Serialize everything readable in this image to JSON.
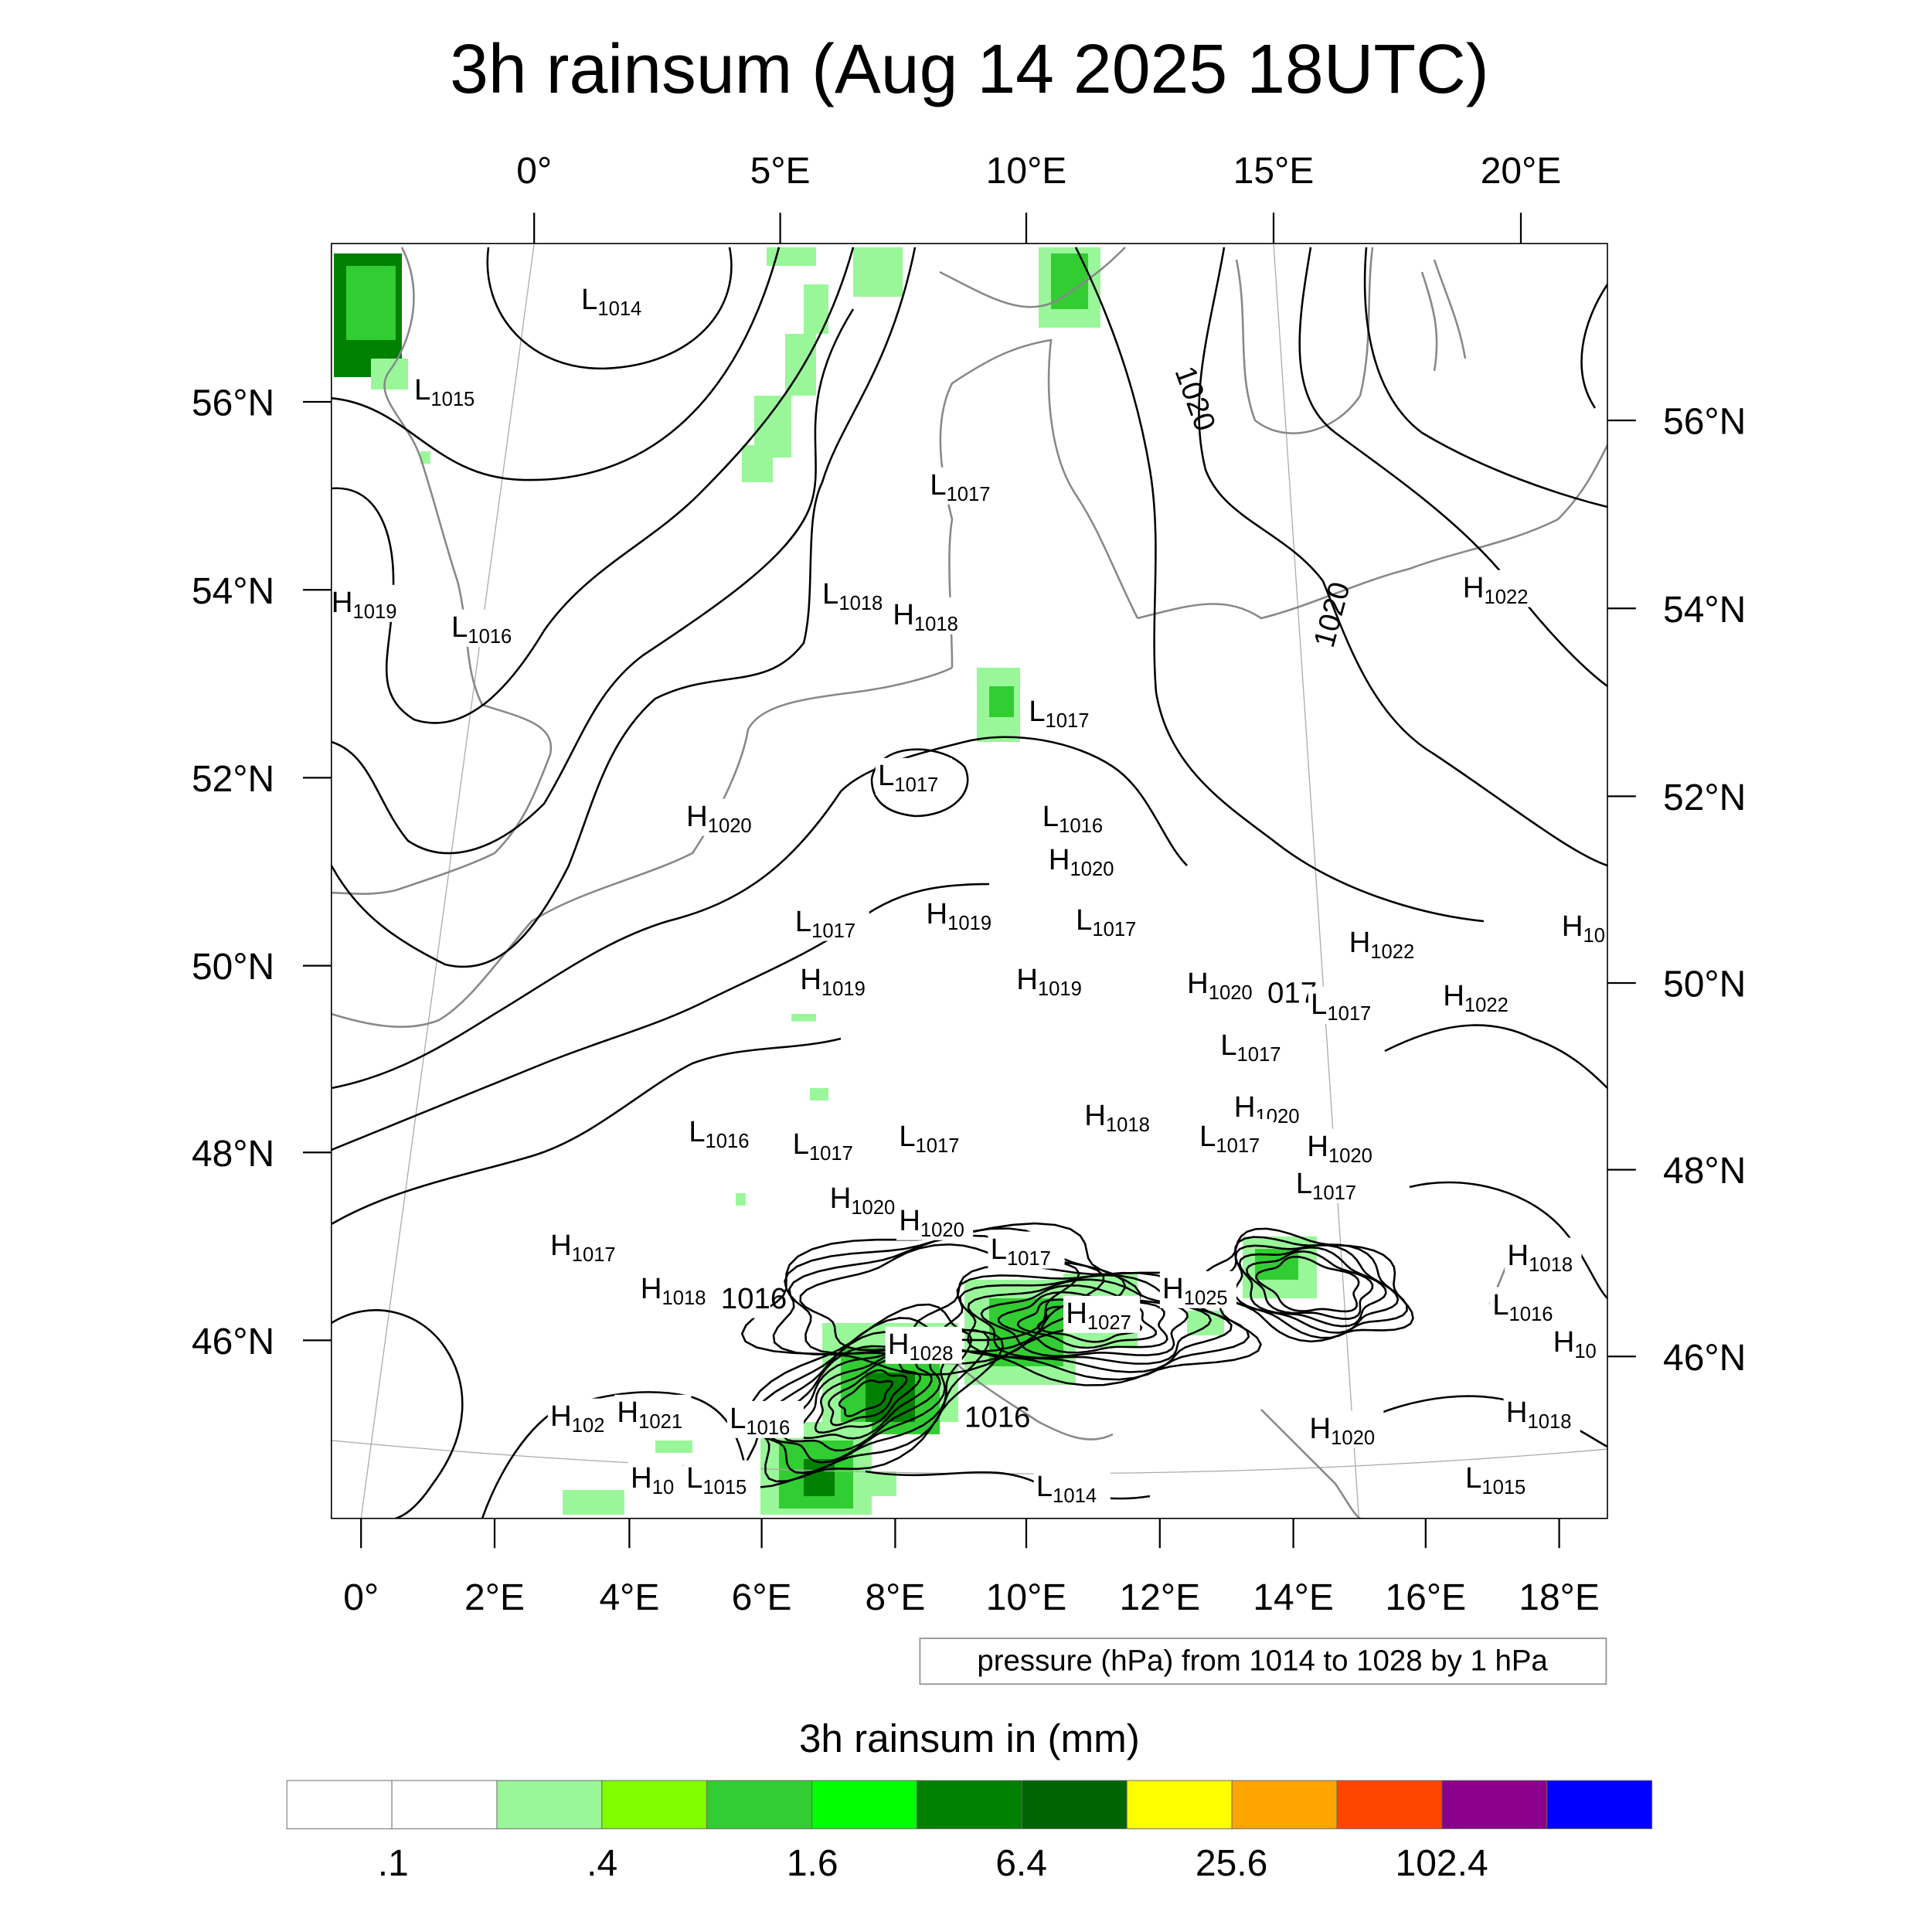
{
  "title": "3h rainsum (Aug 14 2025 18UTC)",
  "top_lon_labels": [
    "0°",
    "5°E",
    "10°E",
    "15°E",
    "20°E"
  ],
  "bottom_lon_labels": [
    "0°",
    "2°E",
    "4°E",
    "6°E",
    "8°E",
    "10°E",
    "12°E",
    "14°E",
    "16°E",
    "18°E"
  ],
  "left_lat_labels": [
    "56°N",
    "54°N",
    "52°N",
    "50°N",
    "48°N",
    "46°N"
  ],
  "right_lat_labels": [
    "56°N",
    "54°N",
    "52°N",
    "50°N",
    "48°N",
    "46°N"
  ],
  "contour_legend": "pressure (hPa) from 1014 to 1028 by 1 hPa",
  "contour_inline_labels": [
    "1020",
    "1020",
    "1016"
  ],
  "pressure_centers": [
    {
      "letter": "L",
      "value": "1014"
    },
    {
      "letter": "L",
      "value": "1015"
    },
    {
      "letter": "H",
      "value": "1019"
    },
    {
      "letter": "L",
      "value": "1016"
    },
    {
      "letter": "L",
      "value": "1017"
    },
    {
      "letter": "L",
      "value": "1018"
    },
    {
      "letter": "H",
      "value": "1018"
    },
    {
      "letter": "L",
      "value": "1017"
    },
    {
      "letter": "L",
      "value": "1017"
    },
    {
      "letter": "H",
      "value": "1020"
    },
    {
      "letter": "L",
      "value": "1016"
    },
    {
      "letter": "H",
      "value": "1020"
    },
    {
      "letter": "L",
      "value": "1017"
    },
    {
      "letter": "H",
      "value": "1019"
    },
    {
      "letter": "L",
      "value": "1017"
    },
    {
      "letter": "H",
      "value": "1019"
    },
    {
      "letter": "H",
      "value": "1019"
    },
    {
      "letter": "H",
      "value": "1020"
    },
    {
      "letter": "",
      "value": "017"
    },
    {
      "letter": "L",
      "value": "1017"
    },
    {
      "letter": "H",
      "value": "1022"
    },
    {
      "letter": "H",
      "value": "1022"
    },
    {
      "letter": "L",
      "value": "1017"
    },
    {
      "letter": "H",
      "value": "1020"
    },
    {
      "letter": "H",
      "value": "1018"
    },
    {
      "letter": "L",
      "value": "1017"
    },
    {
      "letter": "H",
      "value": "1020"
    },
    {
      "letter": "L",
      "value": "1017"
    },
    {
      "letter": "L",
      "value": "1016"
    },
    {
      "letter": "L",
      "value": "1017"
    },
    {
      "letter": "L",
      "value": "1017"
    },
    {
      "letter": "H",
      "value": "1020"
    },
    {
      "letter": "H",
      "value": "1020"
    },
    {
      "letter": "H",
      "value": "1017"
    },
    {
      "letter": "H",
      "value": "1018"
    },
    {
      "letter": "",
      "value": "1016"
    },
    {
      "letter": "L",
      "value": "1017"
    },
    {
      "letter": "H",
      "value": "1025"
    },
    {
      "letter": "H",
      "value": "1027"
    },
    {
      "letter": "H",
      "value": "1028"
    },
    {
      "letter": "H",
      "value": "102"
    },
    {
      "letter": "H",
      "value": "1021"
    },
    {
      "letter": "L",
      "value": "1016"
    },
    {
      "letter": "H",
      "value": "10"
    },
    {
      "letter": "L",
      "value": "1015"
    },
    {
      "letter": "L",
      "value": "1014"
    },
    {
      "letter": "H",
      "value": "1020"
    },
    {
      "letter": "H",
      "value": "1018"
    },
    {
      "letter": "L",
      "value": "1016"
    },
    {
      "letter": "H",
      "value": "10"
    },
    {
      "letter": "H",
      "value": "1018"
    },
    {
      "letter": "L",
      "value": "1015"
    },
    {
      "letter": "H",
      "value": "1022"
    },
    {
      "letter": "H",
      "value": "10"
    }
  ],
  "colorbar": {
    "title": "3h rainsum in (mm)",
    "colors": [
      "#ffffff",
      "#ffffff",
      "#99f799",
      "#80ff00",
      "#32cd32",
      "#00ff00",
      "#008000",
      "#006400",
      "#ffff00",
      "#ffa500",
      "#ff4500",
      "#8b008b",
      "#0000ff"
    ],
    "tick_labels": [
      ".1",
      ".4",
      "1.6",
      "6.4",
      "25.6",
      "102.4"
    ]
  },
  "rain_color_light": "#99f799",
  "rain_color_mid": "#32cd32",
  "rain_color_dark": "#008000"
}
